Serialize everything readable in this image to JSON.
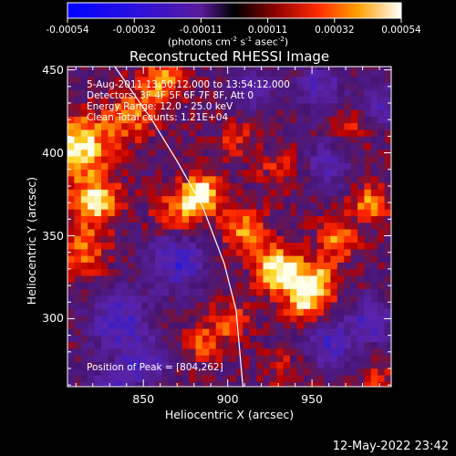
{
  "colorbar": {
    "ticks": [
      "-0.00054",
      "-0.00032",
      "-0.00011",
      "0.00011",
      "0.00032",
      "0.00054"
    ],
    "units": {
      "pre": "(photons cm",
      "e1": "-2",
      "mid1": " s",
      "e2": "-1",
      "mid2": " asec",
      "e3": "-2",
      "post": ")"
    }
  },
  "chart_data": {
    "type": "heatmap",
    "title": "Reconstructed RHESSI Image",
    "xlabel": "Heliocentric X (arcsec)",
    "ylabel": "Heliocentric Y (arcsec)",
    "xlim": [
      805,
      997
    ],
    "ylim": [
      259,
      452
    ],
    "xticks": [
      850,
      900,
      950
    ],
    "yticks": [
      300,
      350,
      400,
      450
    ],
    "color_range": [
      -0.00054,
      0.00054
    ],
    "colormap": "red-temperature with blue negatives",
    "limb_curve": [
      [
        833,
        452
      ],
      [
        855,
        420
      ],
      [
        870,
        395
      ],
      [
        885,
        368
      ],
      [
        898,
        333
      ],
      [
        905,
        305
      ],
      [
        909,
        259
      ]
    ],
    "peak": [
      804,
      262
    ],
    "info_lines": [
      "5-Aug-2011 13:50:12.000 to 13:54:12.000",
      "Detectors: 3F 4F 5F 6F 7F 8F, Att 0",
      "Energy Range: 12.0 - 25.0 keV",
      "Clean     Total counts: 1.21E+04"
    ],
    "peak_label": "Position of Peak = [804,262]",
    "blobs": [
      {
        "x": 812,
        "y": 405,
        "v": 0.00054,
        "s": 12
      },
      {
        "x": 822,
        "y": 372,
        "v": 0.00048,
        "s": 10
      },
      {
        "x": 815,
        "y": 342,
        "v": 0.0003,
        "s": 10
      },
      {
        "x": 842,
        "y": 423,
        "v": 0.00028,
        "s": 11
      },
      {
        "x": 860,
        "y": 445,
        "v": 0.00034,
        "s": 9
      },
      {
        "x": 885,
        "y": 376,
        "v": 0.00054,
        "s": 8
      },
      {
        "x": 870,
        "y": 366,
        "v": 0.00028,
        "s": 10
      },
      {
        "x": 910,
        "y": 355,
        "v": 0.00036,
        "s": 9
      },
      {
        "x": 930,
        "y": 330,
        "v": 0.00054,
        "s": 10
      },
      {
        "x": 952,
        "y": 322,
        "v": 0.00044,
        "s": 9
      },
      {
        "x": 945,
        "y": 310,
        "v": 0.0003,
        "s": 8
      },
      {
        "x": 965,
        "y": 348,
        "v": 0.0003,
        "s": 9
      },
      {
        "x": 985,
        "y": 370,
        "v": 0.00034,
        "s": 8
      },
      {
        "x": 978,
        "y": 420,
        "v": 0.00022,
        "s": 9
      },
      {
        "x": 930,
        "y": 392,
        "v": 0.00018,
        "s": 9
      },
      {
        "x": 905,
        "y": 410,
        "v": 0.0002,
        "s": 8
      },
      {
        "x": 900,
        "y": 300,
        "v": 0.00026,
        "s": 9
      },
      {
        "x": 885,
        "y": 285,
        "v": 0.00022,
        "s": 8
      },
      {
        "x": 935,
        "y": 270,
        "v": 0.00016,
        "s": 9
      },
      {
        "x": 988,
        "y": 262,
        "v": 0.0002,
        "s": 8
      },
      {
        "x": 870,
        "y": 335,
        "v": -0.0004,
        "s": 12
      },
      {
        "x": 835,
        "y": 300,
        "v": -0.00038,
        "s": 12
      },
      {
        "x": 850,
        "y": 275,
        "v": -0.00034,
        "s": 10
      },
      {
        "x": 960,
        "y": 285,
        "v": -0.00036,
        "s": 10
      },
      {
        "x": 985,
        "y": 300,
        "v": -0.0004,
        "s": 9
      },
      {
        "x": 990,
        "y": 430,
        "v": -0.00034,
        "s": 9
      },
      {
        "x": 955,
        "y": 440,
        "v": -0.0003,
        "s": 10
      },
      {
        "x": 915,
        "y": 440,
        "v": -0.00028,
        "s": 9
      },
      {
        "x": 960,
        "y": 395,
        "v": -0.0003,
        "s": 9
      },
      {
        "x": 830,
        "y": 260,
        "v": -0.0003,
        "s": 9
      }
    ]
  },
  "timestamp": "12-May-2022 23:42"
}
